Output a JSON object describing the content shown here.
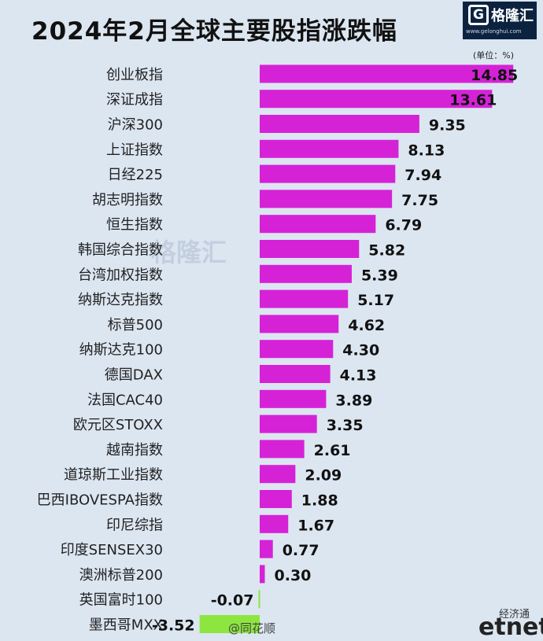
{
  "header": {
    "title": "2024年2月全球主要股指涨跌幅",
    "logo_text": "格隆汇",
    "logo_url": "www.gelonghui.com",
    "unit": "(单位：%)"
  },
  "watermark": {
    "text": "格隆汇"
  },
  "footer": {
    "weibo": "@同花顺",
    "source_small": "经济通",
    "source_logo": "etnet"
  },
  "colors": {
    "positive": "#d522d7",
    "negative": "#8de63f",
    "background": "#dce6f1"
  },
  "chart_data": {
    "type": "bar",
    "orientation": "horizontal",
    "title": "2024年2月全球主要股指涨跌幅",
    "unit": "%",
    "categories": [
      "创业板指",
      "深证成指",
      "沪深300",
      "上证指数",
      "日经225",
      "胡志明指数",
      "恒生指数",
      "韩国综合指数",
      "台湾加权指数",
      "纳斯达克指数",
      "标普500",
      "纳斯达克100",
      "德国DAX",
      "法国CAC40",
      "欧元区STOXX",
      "越南指数",
      "道琼斯工业指数",
      "巴西IBOVESPA指数",
      "印尼综指",
      "印度SENSEX30",
      "澳洲标普200",
      "英国富时100",
      "墨西哥MXX"
    ],
    "values": [
      14.85,
      13.61,
      9.35,
      8.13,
      7.94,
      7.75,
      6.79,
      5.82,
      5.39,
      5.17,
      4.62,
      4.3,
      4.13,
      3.89,
      3.35,
      2.61,
      2.09,
      1.88,
      1.67,
      0.77,
      0.3,
      -0.07,
      -3.52
    ],
    "value_labels": [
      "14.85",
      "13.61",
      "9.35",
      "8.13",
      "7.94",
      "7.75",
      "6.79",
      "5.82",
      "5.39",
      "5.17",
      "4.62",
      "4.30",
      "4.13",
      "3.89",
      "3.35",
      "2.61",
      "2.09",
      "1.88",
      "1.67",
      "0.77",
      "0.30",
      "-0.07",
      "-3.52"
    ],
    "legend": "none",
    "grid": false
  }
}
